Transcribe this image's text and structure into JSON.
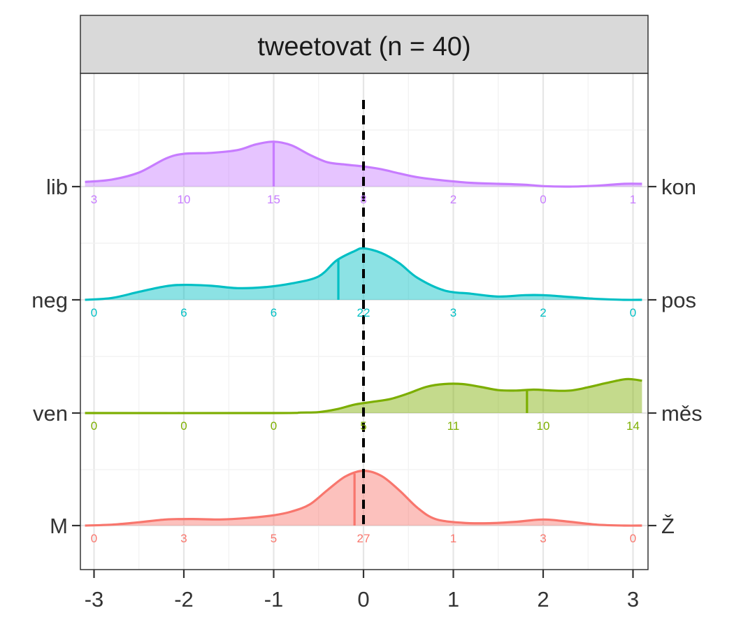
{
  "chart_data": {
    "type": "ridgeline",
    "title": "tweetovat (n = 40)",
    "x_ticks": [
      -3,
      -2,
      -1,
      0,
      1,
      2,
      3
    ],
    "xlim": [
      -3.1,
      3.1
    ],
    "reference_line_x": 0,
    "grid": true,
    "series": [
      {
        "left_label": "lib",
        "right_label": "kon",
        "color": "#C77CFF",
        "counts": [
          3,
          10,
          15,
          8,
          2,
          0,
          1
        ],
        "median": -1,
        "density": [
          [
            -3.1,
            0.1
          ],
          [
            -2.8,
            0.15
          ],
          [
            -2.5,
            0.3
          ],
          [
            -2.2,
            0.6
          ],
          [
            -2.0,
            0.7
          ],
          [
            -1.7,
            0.72
          ],
          [
            -1.4,
            0.78
          ],
          [
            -1.2,
            0.9
          ],
          [
            -1.0,
            0.96
          ],
          [
            -0.8,
            0.88
          ],
          [
            -0.6,
            0.68
          ],
          [
            -0.4,
            0.52
          ],
          [
            -0.2,
            0.47
          ],
          [
            0.0,
            0.43
          ],
          [
            0.2,
            0.37
          ],
          [
            0.4,
            0.28
          ],
          [
            0.6,
            0.2
          ],
          [
            0.9,
            0.13
          ],
          [
            1.2,
            0.08
          ],
          [
            1.5,
            0.06
          ],
          [
            1.8,
            0.04
          ],
          [
            2.0,
            0.01
          ],
          [
            2.3,
            0.0
          ],
          [
            2.6,
            0.02
          ],
          [
            2.9,
            0.06
          ],
          [
            3.1,
            0.06
          ]
        ]
      },
      {
        "left_label": "neg",
        "right_label": "pos",
        "color": "#00BFC4",
        "counts": [
          0,
          6,
          6,
          22,
          3,
          2,
          0
        ],
        "median": -0.28,
        "density": [
          [
            -3.1,
            0.0
          ],
          [
            -2.8,
            0.04
          ],
          [
            -2.5,
            0.17
          ],
          [
            -2.2,
            0.29
          ],
          [
            -2.0,
            0.32
          ],
          [
            -1.7,
            0.3
          ],
          [
            -1.4,
            0.25
          ],
          [
            -1.1,
            0.27
          ],
          [
            -0.8,
            0.35
          ],
          [
            -0.5,
            0.5
          ],
          [
            -0.3,
            0.84
          ],
          [
            -0.1,
            1.04
          ],
          [
            0.0,
            1.1
          ],
          [
            0.2,
            1.0
          ],
          [
            0.4,
            0.78
          ],
          [
            0.6,
            0.47
          ],
          [
            0.9,
            0.2
          ],
          [
            1.2,
            0.13
          ],
          [
            1.5,
            0.07
          ],
          [
            1.8,
            0.1
          ],
          [
            2.0,
            0.1
          ],
          [
            2.3,
            0.06
          ],
          [
            2.6,
            0.02
          ],
          [
            2.9,
            0.0
          ],
          [
            3.1,
            0.0
          ]
        ]
      },
      {
        "left_label": "ven",
        "right_label": "měs",
        "color": "#7CAE00",
        "counts": [
          0,
          0,
          0,
          5,
          11,
          10,
          14
        ],
        "median": 1.82,
        "density": [
          [
            -3.1,
            0.0
          ],
          [
            -1.0,
            0.0
          ],
          [
            -0.7,
            0.01
          ],
          [
            -0.5,
            0.02
          ],
          [
            -0.3,
            0.08
          ],
          [
            -0.1,
            0.18
          ],
          [
            0.1,
            0.24
          ],
          [
            0.3,
            0.3
          ],
          [
            0.5,
            0.42
          ],
          [
            0.7,
            0.56
          ],
          [
            0.9,
            0.62
          ],
          [
            1.1,
            0.62
          ],
          [
            1.3,
            0.56
          ],
          [
            1.5,
            0.49
          ],
          [
            1.7,
            0.48
          ],
          [
            1.9,
            0.5
          ],
          [
            2.1,
            0.48
          ],
          [
            2.3,
            0.48
          ],
          [
            2.5,
            0.55
          ],
          [
            2.7,
            0.64
          ],
          [
            2.9,
            0.72
          ],
          [
            3.0,
            0.72
          ],
          [
            3.1,
            0.69
          ]
        ]
      },
      {
        "left_label": "M",
        "right_label": "Ž",
        "color": "#F8766D",
        "counts": [
          0,
          3,
          5,
          27,
          1,
          3,
          0
        ],
        "median": -0.1,
        "density": [
          [
            -3.1,
            0.0
          ],
          [
            -2.8,
            0.02
          ],
          [
            -2.5,
            0.07
          ],
          [
            -2.2,
            0.13
          ],
          [
            -1.9,
            0.14
          ],
          [
            -1.6,
            0.13
          ],
          [
            -1.3,
            0.16
          ],
          [
            -1.0,
            0.22
          ],
          [
            -0.8,
            0.3
          ],
          [
            -0.6,
            0.45
          ],
          [
            -0.4,
            0.76
          ],
          [
            -0.2,
            1.05
          ],
          [
            0.0,
            1.17
          ],
          [
            0.2,
            1.06
          ],
          [
            0.4,
            0.75
          ],
          [
            0.6,
            0.38
          ],
          [
            0.8,
            0.14
          ],
          [
            1.1,
            0.06
          ],
          [
            1.4,
            0.05
          ],
          [
            1.7,
            0.08
          ],
          [
            2.0,
            0.13
          ],
          [
            2.3,
            0.08
          ],
          [
            2.6,
            0.02
          ],
          [
            2.9,
            0.0
          ],
          [
            3.1,
            0.0
          ]
        ]
      }
    ]
  }
}
